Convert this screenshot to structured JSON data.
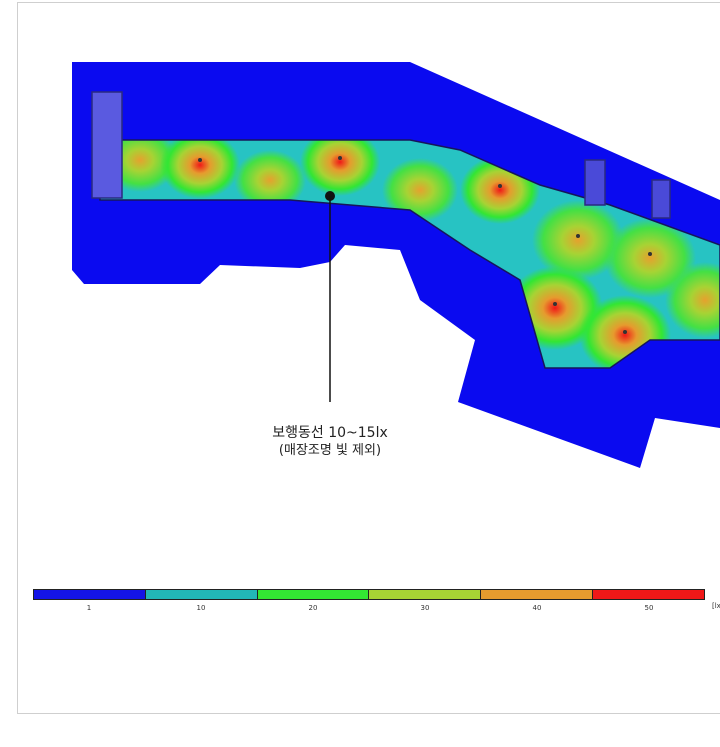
{
  "callout": {
    "line1": "보행동선 10~15lx",
    "line2": "(매장조명 빛 제외)"
  },
  "legend": {
    "segments": [
      {
        "label": "1",
        "color": "#1414e6"
      },
      {
        "label": "10",
        "color": "#22b7b7"
      },
      {
        "label": "20",
        "color": "#33e633"
      },
      {
        "label": "30",
        "color": "#a7d334"
      },
      {
        "label": "40",
        "color": "#e69b2e"
      },
      {
        "label": "50",
        "color": "#f01818"
      }
    ],
    "unit": "[lx]"
  },
  "colors": {
    "blue": "#0a0af0",
    "cyan": "#22b7b7",
    "green": "#33e633",
    "yellow_green": "#a7d334",
    "orange": "#e69b2e",
    "red": "#f01818"
  }
}
